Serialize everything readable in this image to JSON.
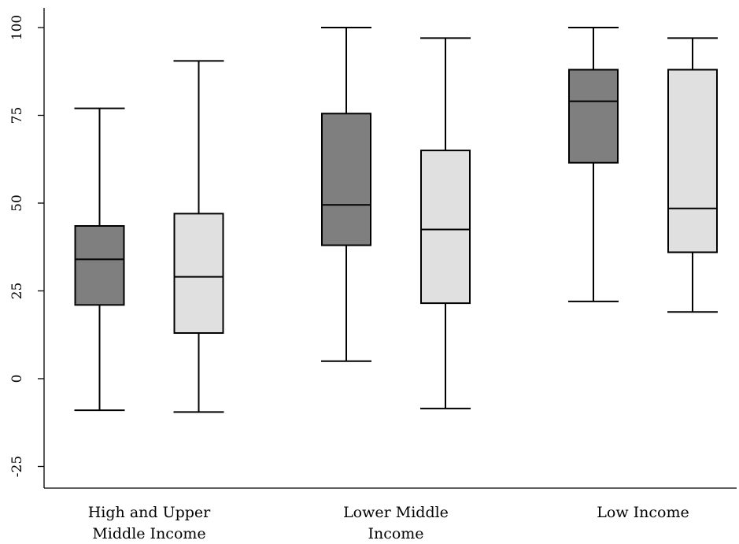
{
  "chart_data": {
    "type": "boxplot",
    "title": "",
    "xlabel": "",
    "ylabel": "",
    "ylim": [
      -30,
      102
    ],
    "yticks": [
      -25,
      0,
      25,
      50,
      75,
      100
    ],
    "categories": [
      [
        "High and Upper",
        "Middle Income"
      ],
      [
        "Lower Middle",
        "Income"
      ],
      [
        "Low Income"
      ]
    ],
    "series": [
      {
        "color": "#7f7f7f",
        "boxes": [
          {
            "min": -9,
            "q1": 21,
            "median": 34,
            "q3": 43.5,
            "max": 77
          },
          {
            "min": 5,
            "q1": 38,
            "median": 49.5,
            "q3": 75.5,
            "max": 100
          },
          {
            "min": 22,
            "q1": 61.5,
            "median": 79,
            "q3": 88,
            "max": 100
          }
        ]
      },
      {
        "color": "#e0e0e0",
        "boxes": [
          {
            "min": -9.5,
            "q1": 13,
            "median": 29,
            "q3": 47,
            "max": 90.5
          },
          {
            "min": -8.5,
            "q1": 21.5,
            "median": 42.5,
            "q3": 65,
            "max": 97
          },
          {
            "min": 19,
            "q1": 36,
            "median": 48.5,
            "q3": 88,
            "max": 97
          }
        ]
      }
    ]
  }
}
